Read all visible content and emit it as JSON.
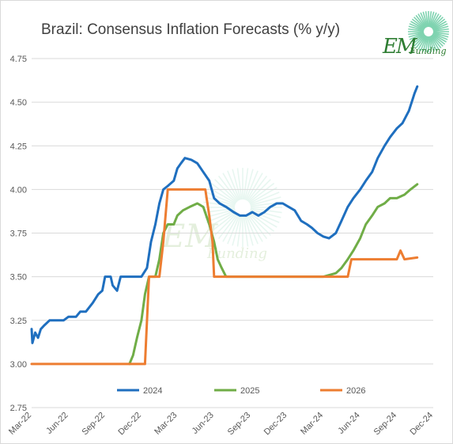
{
  "chart_data": {
    "type": "line",
    "title": "Brazil: Consensus Inflation Forecasts (% y/y)",
    "xlabel": "",
    "ylabel": "",
    "ylim": [
      2.75,
      4.75
    ],
    "yticks": [
      "2.75",
      "3.00",
      "3.25",
      "3.50",
      "3.75",
      "4.00",
      "4.25",
      "4.50",
      "4.75"
    ],
    "xticks": [
      "Mar-22",
      "Jun-22",
      "Sep-22",
      "Dec-22",
      "Mar-23",
      "Jun-23",
      "Sep-23",
      "Dec-23",
      "Mar-24",
      "Jun-24",
      "Sep-24",
      "Dec-24"
    ],
    "xrange": [
      "2022-03-01",
      "2024-12-01"
    ],
    "grid": "horizontal",
    "legend_position": "bottom",
    "series": [
      {
        "name": "2024",
        "color": "#1f6fbf",
        "points": [
          [
            "2022-03-01",
            3.2
          ],
          [
            "2022-03-03",
            3.12
          ],
          [
            "2022-03-10",
            3.18
          ],
          [
            "2022-03-17",
            3.15
          ],
          [
            "2022-03-24",
            3.2
          ],
          [
            "2022-04-01",
            3.22
          ],
          [
            "2022-04-15",
            3.25
          ],
          [
            "2022-05-01",
            3.25
          ],
          [
            "2022-05-20",
            3.25
          ],
          [
            "2022-06-01",
            3.27
          ],
          [
            "2022-06-20",
            3.27
          ],
          [
            "2022-07-01",
            3.3
          ],
          [
            "2022-07-15",
            3.3
          ],
          [
            "2022-08-01",
            3.35
          ],
          [
            "2022-08-15",
            3.4
          ],
          [
            "2022-08-25",
            3.42
          ],
          [
            "2022-09-01",
            3.5
          ],
          [
            "2022-09-15",
            3.5
          ],
          [
            "2022-09-20",
            3.45
          ],
          [
            "2022-10-01",
            3.42
          ],
          [
            "2022-10-10",
            3.5
          ],
          [
            "2022-11-01",
            3.5
          ],
          [
            "2022-11-20",
            3.5
          ],
          [
            "2022-12-01",
            3.5
          ],
          [
            "2022-12-15",
            3.55
          ],
          [
            "2022-12-25",
            3.7
          ],
          [
            "2023-01-05",
            3.8
          ],
          [
            "2023-01-15",
            3.92
          ],
          [
            "2023-01-25",
            4.0
          ],
          [
            "2023-02-05",
            4.02
          ],
          [
            "2023-02-20",
            4.05
          ],
          [
            "2023-03-01",
            4.12
          ],
          [
            "2023-03-10",
            4.15
          ],
          [
            "2023-03-20",
            4.18
          ],
          [
            "2023-04-05",
            4.17
          ],
          [
            "2023-04-20",
            4.15
          ],
          [
            "2023-05-05",
            4.1
          ],
          [
            "2023-05-20",
            4.05
          ],
          [
            "2023-06-01",
            3.95
          ],
          [
            "2023-06-15",
            3.92
          ],
          [
            "2023-07-01",
            3.9
          ],
          [
            "2023-07-20",
            3.87
          ],
          [
            "2023-08-05",
            3.85
          ],
          [
            "2023-08-20",
            3.85
          ],
          [
            "2023-09-05",
            3.87
          ],
          [
            "2023-09-20",
            3.85
          ],
          [
            "2023-10-05",
            3.87
          ],
          [
            "2023-10-20",
            3.9
          ],
          [
            "2023-11-05",
            3.92
          ],
          [
            "2023-11-20",
            3.92
          ],
          [
            "2023-12-05",
            3.9
          ],
          [
            "2023-12-20",
            3.88
          ],
          [
            "2024-01-05",
            3.82
          ],
          [
            "2024-01-20",
            3.8
          ],
          [
            "2024-02-01",
            3.78
          ],
          [
            "2024-02-15",
            3.75
          ],
          [
            "2024-03-01",
            3.73
          ],
          [
            "2024-03-15",
            3.72
          ],
          [
            "2024-04-01",
            3.75
          ],
          [
            "2024-04-15",
            3.82
          ],
          [
            "2024-05-01",
            3.9
          ],
          [
            "2024-05-15",
            3.95
          ],
          [
            "2024-06-01",
            4.0
          ],
          [
            "2024-06-15",
            4.05
          ],
          [
            "2024-07-01",
            4.1
          ],
          [
            "2024-07-15",
            4.18
          ],
          [
            "2024-08-01",
            4.25
          ],
          [
            "2024-08-15",
            4.3
          ],
          [
            "2024-09-01",
            4.35
          ],
          [
            "2024-09-15",
            4.38
          ],
          [
            "2024-10-01",
            4.45
          ],
          [
            "2024-10-15",
            4.55
          ],
          [
            "2024-10-22",
            4.59
          ]
        ]
      },
      {
        "name": "2025",
        "color": "#70ad47",
        "points": [
          [
            "2022-11-01",
            3.0
          ],
          [
            "2022-11-10",
            3.05
          ],
          [
            "2022-11-20",
            3.15
          ],
          [
            "2022-12-01",
            3.25
          ],
          [
            "2022-12-10",
            3.4
          ],
          [
            "2022-12-20",
            3.5
          ],
          [
            "2023-01-05",
            3.5
          ],
          [
            "2023-01-15",
            3.6
          ],
          [
            "2023-01-25",
            3.75
          ],
          [
            "2023-02-05",
            3.8
          ],
          [
            "2023-02-20",
            3.8
          ],
          [
            "2023-03-01",
            3.85
          ],
          [
            "2023-03-15",
            3.88
          ],
          [
            "2023-04-01",
            3.9
          ],
          [
            "2023-04-20",
            3.92
          ],
          [
            "2023-05-05",
            3.9
          ],
          [
            "2023-05-20",
            3.8
          ],
          [
            "2023-06-01",
            3.7
          ],
          [
            "2023-06-10",
            3.6
          ],
          [
            "2023-06-20",
            3.55
          ],
          [
            "2023-07-01",
            3.5
          ],
          [
            "2024-03-01",
            3.5
          ],
          [
            "2024-04-01",
            3.52
          ],
          [
            "2024-04-15",
            3.55
          ],
          [
            "2024-05-01",
            3.6
          ],
          [
            "2024-05-15",
            3.65
          ],
          [
            "2024-06-01",
            3.72
          ],
          [
            "2024-06-15",
            3.8
          ],
          [
            "2024-07-01",
            3.85
          ],
          [
            "2024-07-15",
            3.9
          ],
          [
            "2024-08-01",
            3.92
          ],
          [
            "2024-08-15",
            3.95
          ],
          [
            "2024-09-01",
            3.95
          ],
          [
            "2024-09-20",
            3.97
          ],
          [
            "2024-10-05",
            4.0
          ],
          [
            "2024-10-22",
            4.03
          ]
        ]
      },
      {
        "name": "2026",
        "color": "#ed7d31",
        "points": [
          [
            "2022-03-01",
            3.0
          ],
          [
            "2022-11-20",
            3.0
          ],
          [
            "2022-12-10",
            3.0
          ],
          [
            "2022-12-20",
            3.5
          ],
          [
            "2023-01-15",
            3.5
          ],
          [
            "2023-01-25",
            3.7
          ],
          [
            "2023-02-05",
            4.0
          ],
          [
            "2023-04-15",
            4.0
          ],
          [
            "2023-05-10",
            4.0
          ],
          [
            "2023-05-20",
            3.85
          ],
          [
            "2023-05-28",
            3.7
          ],
          [
            "2023-06-01",
            3.5
          ],
          [
            "2024-04-01",
            3.5
          ],
          [
            "2024-05-01",
            3.5
          ],
          [
            "2024-05-10",
            3.6
          ],
          [
            "2024-09-01",
            3.6
          ],
          [
            "2024-09-10",
            3.65
          ],
          [
            "2024-09-20",
            3.6
          ],
          [
            "2024-10-22",
            3.61
          ]
        ]
      }
    ]
  },
  "logo": {
    "text_em": "EM",
    "text_funding": "Funding",
    "color": "#2e7d32"
  },
  "watermark": {
    "text": "Funding"
  }
}
